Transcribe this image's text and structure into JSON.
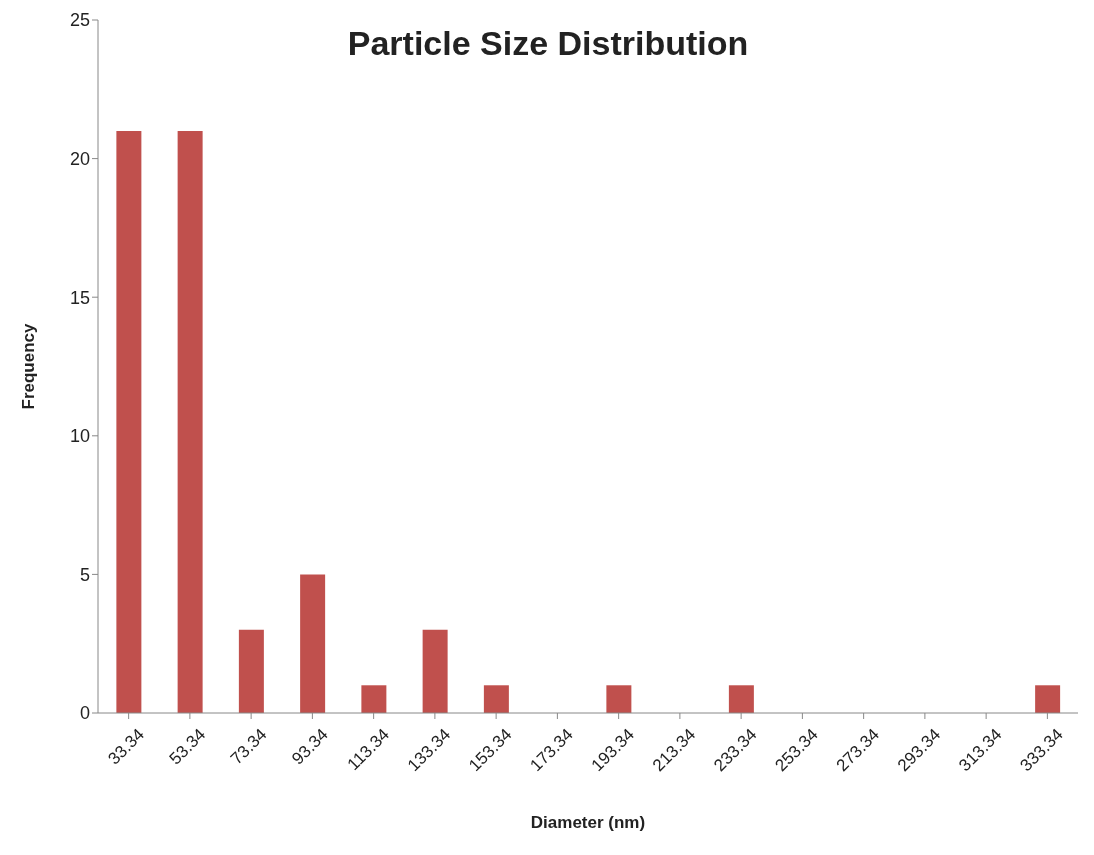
{
  "chart_data": {
    "type": "bar",
    "title": "Particle Size Distribution",
    "xlabel": "Diameter (nm)",
    "ylabel": "Frequency",
    "categories": [
      "33.34",
      "53.34",
      "73.34",
      "93.34",
      "113.34",
      "133.34",
      "153.34",
      "173.34",
      "193.34",
      "213.34",
      "233.34",
      "253.34",
      "273.34",
      "293.34",
      "313.34",
      "333.34"
    ],
    "values": [
      21,
      21,
      3,
      5,
      1,
      3,
      1,
      0,
      1,
      0,
      1,
      0,
      0,
      0,
      0,
      1
    ],
    "color": "#c0504d",
    "ylim": [
      0,
      25
    ],
    "yticks": [
      0,
      5,
      10,
      15,
      20,
      25
    ],
    "grid": false,
    "legend": false
  }
}
